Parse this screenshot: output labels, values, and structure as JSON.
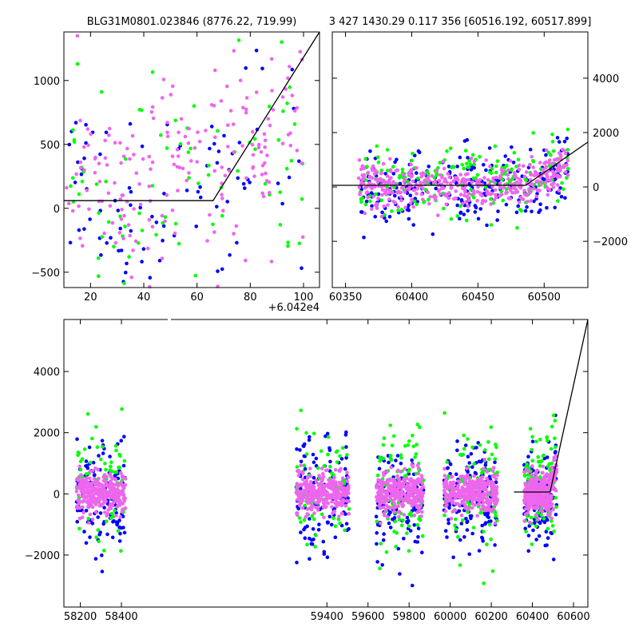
{
  "chart_data": [
    {
      "id": "top-left",
      "type": "scatter",
      "title": "BLG31M0801.023846 (8776.22, 719.99)",
      "xlabel": "",
      "ylabel": "",
      "x_offset_label": "+6.042e4",
      "xlim": [
        10,
        106
      ],
      "ylim": [
        -620,
        1380
      ],
      "xticks": [
        20,
        40,
        60,
        80,
        100
      ],
      "yticks": [
        -500,
        0,
        500,
        1000
      ],
      "yaxis_side": "left",
      "grid": false,
      "model_line": {
        "x": [
          10,
          66,
          106
        ],
        "y": [
          60,
          60,
          1380
        ]
      },
      "series": [
        {
          "color": "#0000ff",
          "seed": 11,
          "count": 95,
          "xrange": [
            10,
            100
          ],
          "center": 100,
          "spread": 450,
          "trend_start": 66,
          "trend_slope": 10
        },
        {
          "color": "#00ff00",
          "seed": 23,
          "count": 80,
          "xrange": [
            10,
            100
          ],
          "center": 300,
          "spread": 400,
          "trend_start": 66,
          "trend_slope": 10
        },
        {
          "color": "#ee66ee",
          "seed": 37,
          "count": 190,
          "xrange": [
            10,
            100
          ],
          "center": 200,
          "spread": 380,
          "trend_start": 66,
          "trend_slope": 14
        }
      ]
    },
    {
      "id": "top-right",
      "type": "scatter",
      "title": "3 427 1430.29 0.117 356 [60516.192, 60517.899]",
      "xlabel": "",
      "ylabel": "",
      "xlim": [
        60340,
        60533
      ],
      "ylim": [
        -3700,
        5700
      ],
      "xticks": [
        60350,
        60400,
        60450,
        60500
      ],
      "yticks": [
        -2000,
        0,
        2000,
        4000
      ],
      "yaxis_side": "right",
      "grid": false,
      "model_line": {
        "x": [
          60340,
          60486,
          60533
        ],
        "y": [
          60,
          60,
          1650
        ]
      },
      "series": [
        {
          "color": "#0000ff",
          "seed": 41,
          "count": 260,
          "xrange": [
            60360,
            60518
          ],
          "center": -100,
          "spread": 700,
          "trend_start": 60486,
          "trend_slope": 25
        },
        {
          "color": "#00ff00",
          "seed": 53,
          "count": 200,
          "xrange": [
            60360,
            60518
          ],
          "center": 200,
          "spread": 600,
          "trend_start": 60486,
          "trend_slope": 25
        },
        {
          "color": "#ee66ee",
          "seed": 67,
          "count": 420,
          "xrange": [
            60360,
            60518
          ],
          "center": 50,
          "spread": 350,
          "trend_start": 60486,
          "trend_slope": 25
        }
      ]
    },
    {
      "id": "bottom",
      "type": "scatter",
      "title": "",
      "xlabel": "",
      "ylabel": "",
      "xlim": [
        58120,
        60670
      ],
      "ylim": [
        -3700,
        5700
      ],
      "xticks": [
        58200,
        58400,
        59400,
        59600,
        59800,
        60000,
        60200,
        60400,
        60600
      ],
      "yticks": [
        -2000,
        0,
        2000,
        4000
      ],
      "yaxis_side": "left",
      "grid": false,
      "axis_break": {
        "from": 58430,
        "to": 59230
      },
      "model_line": {
        "x": [
          60310,
          60486,
          60670
        ],
        "y": [
          60,
          60,
          5700
        ]
      },
      "seasons": [
        [
          58180,
          58420
        ],
        [
          59250,
          59510
        ],
        [
          59640,
          59870
        ],
        [
          59970,
          60230
        ],
        [
          60360,
          60518
        ]
      ],
      "series": [
        {
          "color": "#0000ff",
          "seed": 71,
          "count": 650,
          "center": -150,
          "spread": 900
        },
        {
          "color": "#00ff00",
          "seed": 83,
          "count": 420,
          "center": 250,
          "spread": 1000
        },
        {
          "color": "#ee66ee",
          "seed": 97,
          "count": 1500,
          "center": 30,
          "spread": 330
        }
      ]
    }
  ]
}
